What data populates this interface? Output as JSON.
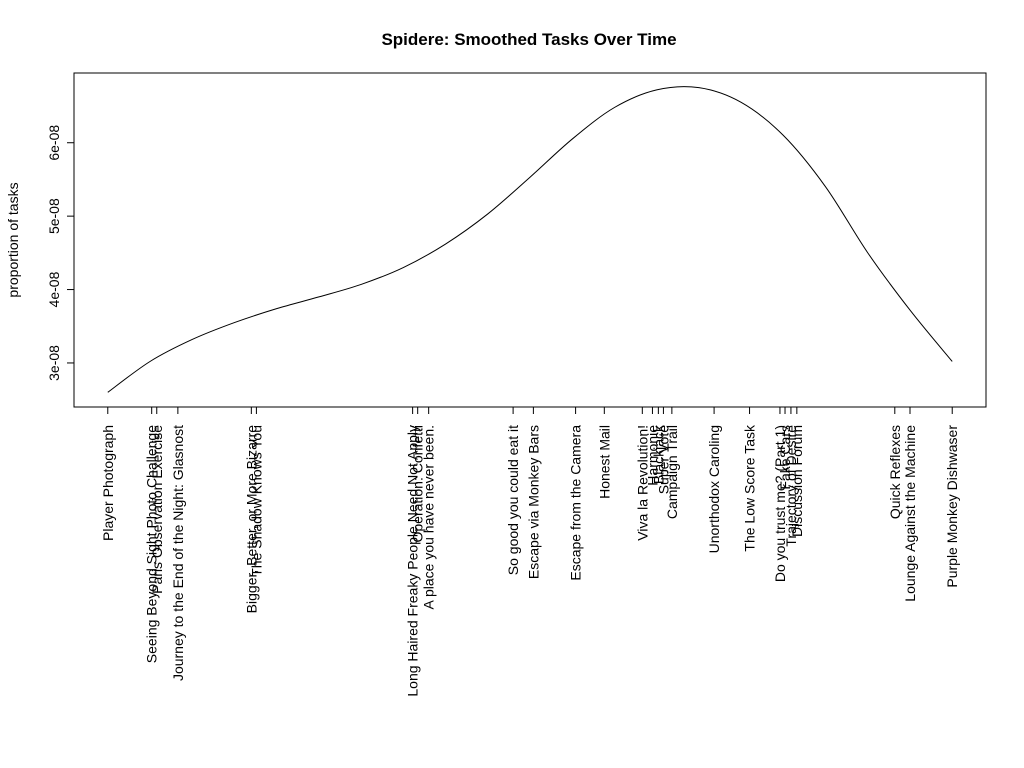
{
  "chart_data": {
    "type": "line",
    "title": "Spidere: Smoothed Tasks Over Time",
    "xlabel": "",
    "ylabel": "proportion of tasks",
    "ylim": [
      2.4e-08,
      6.95e-08
    ],
    "xlim": [
      -0.04,
      1.04
    ],
    "y_ticks": [
      3e-08,
      4e-08,
      5e-08,
      6e-08
    ],
    "y_tick_labels": [
      "3e-08",
      "4e-08",
      "5e-08",
      "6e-08"
    ],
    "grid": false,
    "legend": "none",
    "line_color": "#000000",
    "series": [
      {
        "x": [
          0.0,
          0.05,
          0.1,
          0.15,
          0.2,
          0.25,
          0.3,
          0.35,
          0.4,
          0.45,
          0.5,
          0.55,
          0.6,
          0.65,
          0.7,
          0.75,
          0.8,
          0.85,
          0.9,
          0.95,
          1.0
        ],
        "y": [
          2.6e-08,
          3.02e-08,
          3.32e-08,
          3.55e-08,
          3.74e-08,
          3.9e-08,
          4.07e-08,
          4.3e-08,
          4.62e-08,
          5.03e-08,
          5.53e-08,
          6.05e-08,
          6.48e-08,
          6.72e-08,
          6.75e-08,
          6.55e-08,
          6.1e-08,
          5.4e-08,
          4.5e-08,
          3.72e-08,
          3.02e-08
        ]
      }
    ],
    "tasks": [
      {
        "label": "Player Photograph",
        "x": 0.0
      },
      {
        "label": "Seeing Beyond Sight Photo Challenge",
        "x": 0.052
      },
      {
        "label": "Paris Observation Exercise",
        "x": 0.058
      },
      {
        "label": "Journey to the End of the Night: Glasnost",
        "x": 0.083
      },
      {
        "label": "Bigger, Better, or More Bizarre",
        "x": 0.17
      },
      {
        "label": "The Shadow Knows You",
        "x": 0.176
      },
      {
        "label": "Long Haired Freaky People Need Not Apply",
        "x": 0.361
      },
      {
        "label": "Operation: Confetti",
        "x": 0.367
      },
      {
        "label": "A place you have never been.",
        "x": 0.38
      },
      {
        "label": "So good you could eat it",
        "x": 0.48
      },
      {
        "label": "Escape via Monkey Bars",
        "x": 0.504
      },
      {
        "label": "Escape from the Camera",
        "x": 0.554
      },
      {
        "label": "Honest Mail",
        "x": 0.588
      },
      {
        "label": "Viva la Revolution!",
        "x": 0.633
      },
      {
        "label": "Harmonie",
        "x": 0.645
      },
      {
        "label": "Blackjack",
        "x": 0.652
      },
      {
        "label": "Super Vote",
        "x": 0.658
      },
      {
        "label": "Campaign Trail",
        "x": 0.668
      },
      {
        "label": "Unorthodox Caroling",
        "x": 0.718
      },
      {
        "label": "The Low Score Task",
        "x": 0.76
      },
      {
        "label": "Do you trust me? (Part 1)",
        "x": 0.796
      },
      {
        "label": "Fake Cars",
        "x": 0.802
      },
      {
        "label": "Trajectory of Desire",
        "x": 0.809
      },
      {
        "label": "Discussion Forum",
        "x": 0.816
      },
      {
        "label": "Quick Reflexes",
        "x": 0.932
      },
      {
        "label": "Lounge Against the Machine",
        "x": 0.95
      },
      {
        "label": "Purple Monkey Dishwaser",
        "x": 1.0
      }
    ]
  }
}
